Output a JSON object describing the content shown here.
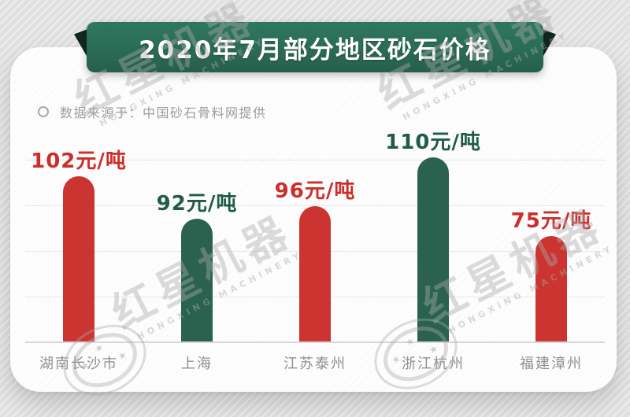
{
  "title": "2020年7月部分地区砂石价格",
  "source_note": "数据来源于：中国砂石骨料网提供",
  "watermark": {
    "text": "红星机器",
    "subtext": "HONGXING MACHINERY"
  },
  "colors": {
    "red": "#cb3430",
    "green": "#2a624f",
    "red_text": "#cb2f2b",
    "green_text": "#1e5b49",
    "banner_green": "#2d7059",
    "fold_dark": "#10291f",
    "grid_gray": "#e7e7e7",
    "axis_gray": "#d8d8d8",
    "city_label_gray": "#8f8f8f",
    "source_gray": "#9c9c9c"
  },
  "chart_data": {
    "type": "bar",
    "title": "2020年7月部分地区砂石价格",
    "unit": "元/吨",
    "categories": [
      "湖南长沙市",
      "上海",
      "江苏泰州",
      "浙江杭州",
      "福建漳州"
    ],
    "values": [
      102,
      92,
      96,
      110,
      75
    ],
    "value_labels": [
      "102元/吨",
      "92元/吨",
      "96元/吨",
      "110元/吨",
      "75元/吨"
    ],
    "bar_colors": [
      "red",
      "green",
      "red",
      "green",
      "red"
    ],
    "bar_style": "rounded-top-column",
    "grid": "horizontal-light",
    "legend": "none",
    "source": "中国砂石骨料网提供"
  }
}
